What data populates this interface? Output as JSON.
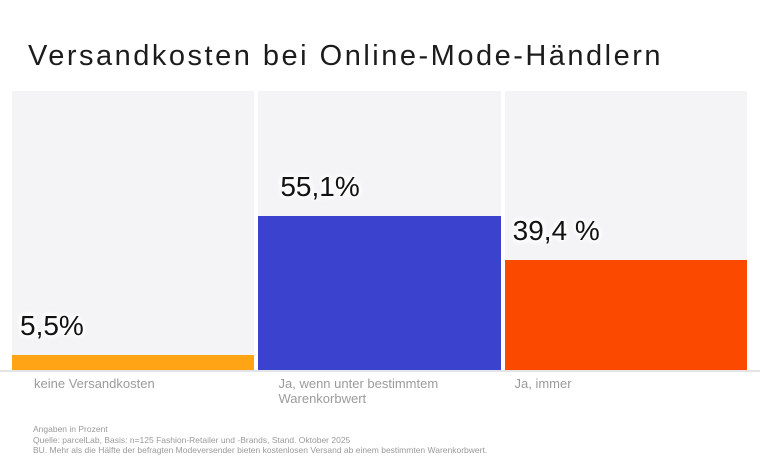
{
  "title": "Versandkosten bei Online-Mode-Händlern",
  "chart_data": {
    "type": "bar",
    "title": "Versandkosten bei Online-Mode-Händlern",
    "categories": [
      "keine Versandkosten",
      "Ja, wenn unter bestimmtem Warenkorbwert",
      "Ja, immer"
    ],
    "values": [
      5.5,
      55.1,
      39.4
    ],
    "value_labels": [
      "5,5%",
      "55,1%",
      "39,4 %"
    ],
    "bar_colors": [
      "#ffa414",
      "#3b43ce",
      "#fb4a00"
    ],
    "track_color": "#f4f4f7",
    "xlabel": "",
    "ylabel": "",
    "ylim": [
      0,
      100
    ],
    "grid": false,
    "legend_position": "none",
    "unit": "Prozent"
  },
  "footnotes": {
    "line1": "Angaben in Prozent",
    "line2": "Quelle: parcelLab, Basis: n=125 Fashion-Retailer und -Brands, Stand. Oktober 2025",
    "line3": "BU. Mehr als die Hälfte der befragten Modeversender bieten kostenlosen Versand ab einem bestimmten Warenkorbwert."
  }
}
